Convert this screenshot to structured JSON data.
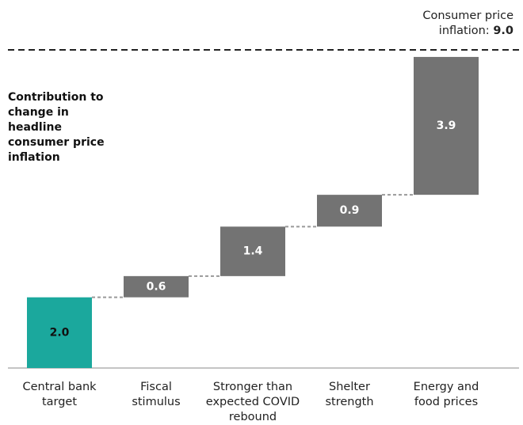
{
  "chart_data": {
    "type": "waterfall",
    "title": "Contribution to change in headline consumer price inflation",
    "categories": [
      "Central bank target",
      "Fiscal stimulus",
      "Stronger than expected COVID rebound",
      "Shelter strength",
      "Energy and food prices"
    ],
    "values": [
      2.0,
      0.6,
      1.4,
      0.9,
      3.9
    ],
    "value_labels": [
      "2.0",
      "0.6",
      "1.4",
      "0.9",
      "3.9"
    ],
    "colors": [
      "#1ba89d",
      "#737373",
      "#737373",
      "#737373",
      "#737373"
    ],
    "total": {
      "name": "Consumer price inflation:",
      "value": 9,
      "label": "9.0"
    },
    "ylim": [
      0,
      9
    ]
  }
}
